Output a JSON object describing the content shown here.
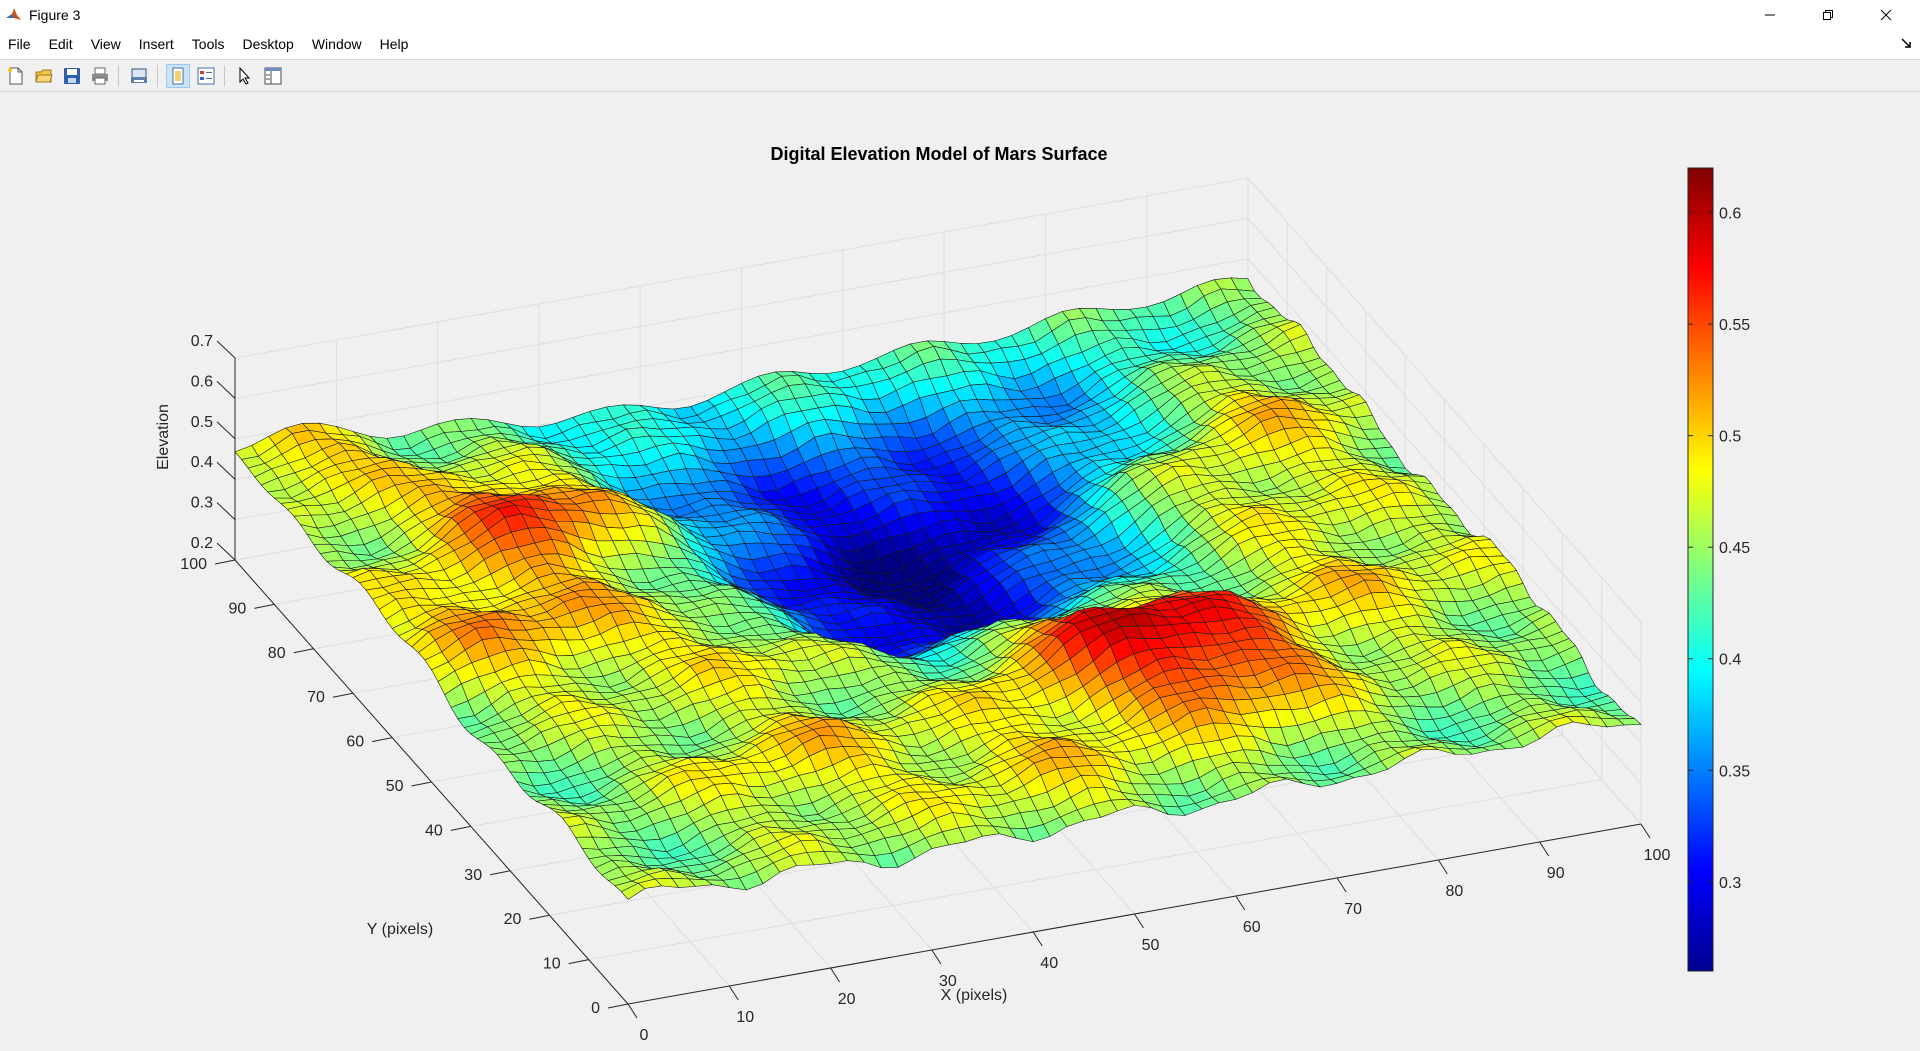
{
  "window": {
    "title": "Figure 3",
    "icon": "matlab-icon",
    "controls": [
      "minimize-icon",
      "restore-icon",
      "close-icon"
    ]
  },
  "menu": {
    "items": [
      "File",
      "Edit",
      "View",
      "Insert",
      "Tools",
      "Desktop",
      "Window",
      "Help"
    ]
  },
  "toolbar": {
    "buttons": [
      "new-figure-icon",
      "open-file-icon",
      "save-icon",
      "print-icon",
      "print-preview-icon",
      "link-plot-icon",
      "insert-legend-icon",
      "edit-plot-icon",
      "property-inspector-icon"
    ]
  },
  "chart_data": {
    "type": "surface",
    "title": "Digital Elevation Model of Mars Surface",
    "xlabel": "X (pixels)",
    "ylabel": "Y (pixels)",
    "zlabel": "Elevation",
    "xlim": [
      0,
      100
    ],
    "ylim": [
      0,
      100
    ],
    "zlim": [
      0.2,
      0.7
    ],
    "xticks": [
      0,
      10,
      20,
      30,
      40,
      50,
      60,
      70,
      80,
      90,
      100
    ],
    "yticks": [
      0,
      10,
      20,
      30,
      40,
      50,
      60,
      70,
      80,
      90,
      100
    ],
    "zticks": [
      0.2,
      0.3,
      0.4,
      0.5,
      0.6,
      0.7
    ],
    "xtick_labels": [
      "0",
      "10",
      "20",
      "30",
      "40",
      "50",
      "60",
      "70",
      "80",
      "90",
      "100"
    ],
    "ytick_labels": [
      "0",
      "10",
      "20",
      "30",
      "40",
      "50",
      "60",
      "70",
      "80",
      "90",
      "100"
    ],
    "ztick_labels": [
      "0.2",
      "0.3",
      "0.4",
      "0.5",
      "0.6",
      "0.7"
    ],
    "colormap": "jet",
    "clim": [
      0.26,
      0.62
    ],
    "colorbar_ticks": [
      0.3,
      0.35,
      0.4,
      0.45,
      0.5,
      0.55,
      0.6
    ],
    "colorbar_tick_labels": [
      "0.3",
      "0.35",
      "0.4",
      "0.45",
      "0.5",
      "0.55",
      "0.6"
    ],
    "grid": true,
    "surface_samples": [
      {
        "x": 0,
        "y": 100,
        "z": 0.5
      },
      {
        "x": 55,
        "y": 70,
        "z": 0.3
      },
      {
        "x": 60,
        "y": 30,
        "z": 0.58
      },
      {
        "x": 20,
        "y": 75,
        "z": 0.58
      },
      {
        "x": 100,
        "y": 100,
        "z": 0.42
      },
      {
        "x": 100,
        "y": 0,
        "z": 0.44
      },
      {
        "x": 0,
        "y": 0,
        "z": 0.46
      }
    ]
  }
}
